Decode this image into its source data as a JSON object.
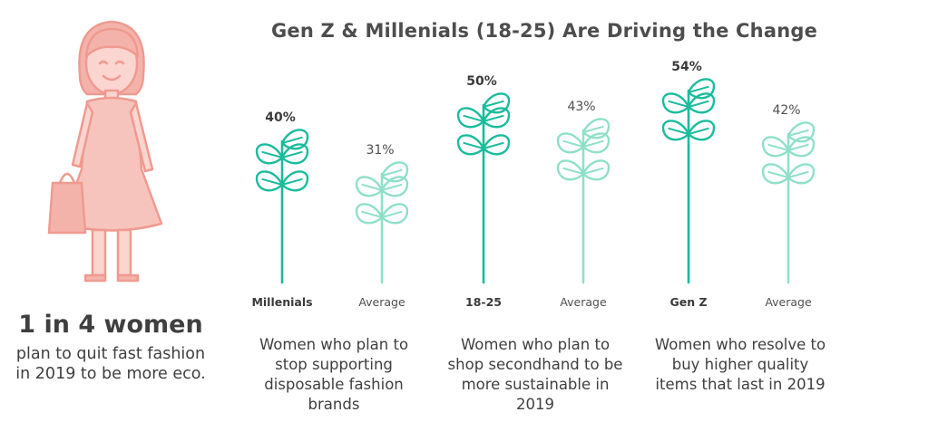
{
  "title": "Gen Z & Millenials (18-25) Are Driving the Change",
  "callout": {
    "headline": "1 in 4 women",
    "subtext": "plan to quit fast fashion in 2019 to be more eco."
  },
  "colors": {
    "primary": "#1abc9c",
    "average": "#8fe0c8",
    "figure": "#f3a9a0"
  },
  "icons": {
    "figure": "woman-with-handbag-icon",
    "bar": "sprouting-plant-icon"
  },
  "chart_data": {
    "type": "bar",
    "title": "Gen Z & Millenials (18-25) Are Driving the Change",
    "ylim": [
      0,
      60
    ],
    "groups": [
      {
        "description": "Women who plan to stop supporting disposable fashion brands",
        "bars": [
          {
            "label": "Millenials",
            "value": 40,
            "value_label": "40%",
            "style": "primary"
          },
          {
            "label": "Average",
            "value": 31,
            "value_label": "31%",
            "style": "average"
          }
        ]
      },
      {
        "description": "Women who plan to shop secondhand to be more sustainable in 2019",
        "bars": [
          {
            "label": "18-25",
            "value": 50,
            "value_label": "50%",
            "style": "primary"
          },
          {
            "label": "Average",
            "value": 43,
            "value_label": "43%",
            "style": "average"
          }
        ]
      },
      {
        "description": "Women who resolve to buy higher quality items that last in 2019",
        "bars": [
          {
            "label": "Gen Z",
            "value": 54,
            "value_label": "54%",
            "style": "primary"
          },
          {
            "label": "Average",
            "value": 42,
            "value_label": "42%",
            "style": "average"
          }
        ]
      }
    ]
  }
}
